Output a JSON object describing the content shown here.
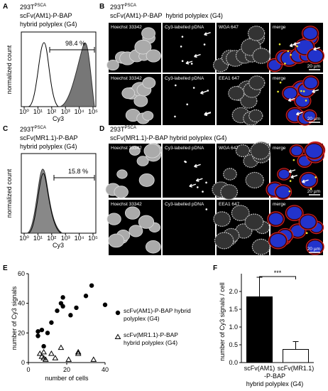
{
  "figure": {
    "panel_a": {
      "label": "A",
      "cell_line": "293T",
      "cell_line_sup": "PSCA",
      "lines": [
        "scFv(AM1)-P-BAP",
        "hybrid polyplex (G4)"
      ],
      "ylabel": "normalized count",
      "xlabel": "Cy3",
      "xtick_labels": [
        "10⁰",
        "10¹",
        "10²",
        "10³",
        "10⁴",
        "10⁵"
      ],
      "gate": "98.4 %"
    },
    "panel_b": {
      "label": "B",
      "cell_line": "293T",
      "cell_line_sup": "PSCA",
      "title": "scFv(AM1)-P-BAP  hybrid polyplex (G4)",
      "rows": [
        [
          "Hoechst 33342",
          "Cy3-labelled pDNA",
          "WGA 647",
          "merge"
        ],
        [
          "Hoechst 33342",
          "Cy3-labelled pDNA",
          "EEA1 647",
          "merge"
        ]
      ],
      "scale": [
        "20 µm",
        "20 µm"
      ]
    },
    "panel_c": {
      "label": "C",
      "cell_line": "293T",
      "cell_line_sup": "PSCA",
      "lines": [
        "scFv(MR1.1)-P-BAP",
        "hybrid polyplex (G4)"
      ],
      "ylabel": "normalized count",
      "xlabel": "Cy3",
      "xtick_labels": [
        "10⁰",
        "10¹",
        "10²",
        "10³",
        "10⁴",
        "10⁵"
      ],
      "gate": "15.8 %"
    },
    "panel_d": {
      "label": "D",
      "cell_line": "293T",
      "cell_line_sup": "PSCA",
      "title": "scFv(MR1.1)-P-BAP hybrid polyplex (G4)",
      "rows": [
        [
          "Hoechst 33342",
          "Cy3-labelled pDNA",
          "WGA 647",
          "merge"
        ],
        [
          "Hoechst 33342",
          "Cy3-labelled pDNA",
          "EEA1 647",
          "merge"
        ]
      ],
      "scale": [
        "20 µm",
        "20 µm"
      ]
    },
    "panel_e": {
      "label": "E"
    },
    "panel_f": {
      "label": "F"
    }
  },
  "chart_data": [
    {
      "type": "scatter",
      "xlabel": "number of cells",
      "ylabel": "number of Cy3 signals",
      "xlim": [
        0,
        40
      ],
      "ylim": [
        0,
        60
      ],
      "xticks": [
        0,
        20,
        40
      ],
      "yticks": [
        0,
        20,
        40,
        60
      ],
      "series": [
        {
          "name": "scFv(AM1)-P-BAP hybrid polyplex (G4)",
          "marker": "circle",
          "color": "#000000",
          "x": [
            5,
            5,
            7,
            8,
            10,
            12,
            15,
            17,
            18,
            18,
            22,
            25,
            30,
            33,
            40
          ],
          "y": [
            21,
            18,
            22,
            11,
            20,
            27,
            35,
            40,
            44,
            38,
            32,
            37,
            45,
            52,
            39
          ]
        },
        {
          "name": "scFv(MR1.1)-P-BAP hybrid polyplex (G4)",
          "marker": "triangle",
          "color": "#000000",
          "x": [
            6,
            7,
            8,
            9,
            8,
            12,
            14,
            17,
            21,
            26,
            26,
            34
          ],
          "y": [
            6,
            4,
            3,
            2,
            7,
            6,
            3,
            10,
            2,
            6,
            7,
            2
          ]
        }
      ]
    },
    {
      "type": "bar",
      "ylabel": "number of Cy3 signals / cell",
      "categories": [
        "scFv(AM1)",
        "scFv(MR1.1)"
      ],
      "values": [
        1.85,
        0.37
      ],
      "errors": [
        0.55,
        0.22
      ],
      "colors": [
        "#000000",
        "#ffffff"
      ],
      "ylim": [
        0,
        2.5
      ],
      "yticks": [
        {
          "value": 0,
          "label": "0.0"
        },
        0.5,
        {
          "value": 1,
          "label": "1.0"
        },
        1.5,
        {
          "value": 2,
          "label": "2.0"
        }
      ],
      "xlabel_lines": [
        "-P-BAP",
        "hybrid polyplex (G4)"
      ],
      "significance": "***"
    }
  ]
}
